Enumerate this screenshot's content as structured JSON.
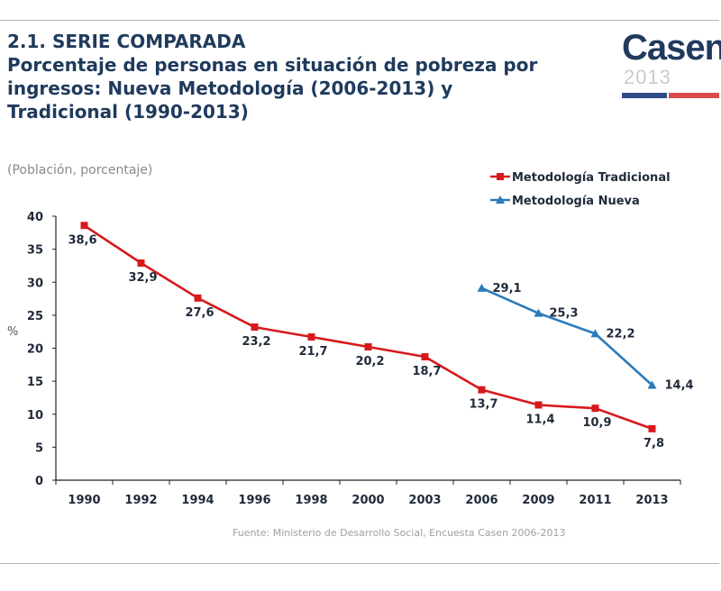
{
  "slide": {
    "title_line1": "2.1. SERIE COMPARADA",
    "title_line2": "Porcentaje de personas en situación de pobreza por\ningresos: Nueva Metodología (2006-2013) y\nTradicional (1990-2013)",
    "subtitle": "(Población, porcentaje)",
    "source": "Fuente: Ministerio de Desarrollo Social, Encuesta Casen 2006-2013",
    "logo_word": "Casen",
    "logo_year": "2013"
  },
  "colors": {
    "traditional": "#d7191c",
    "new": "#2b7bba",
    "title": "#1f3a5c"
  },
  "chart_data": {
    "type": "line",
    "categories": [
      "1990",
      "1992",
      "1994",
      "1996",
      "1998",
      "2000",
      "2003",
      "2006",
      "2009",
      "2011",
      "2013"
    ],
    "ylabel": "%",
    "ylim": [
      0,
      40
    ],
    "yticks": [
      0,
      5,
      10,
      15,
      20,
      25,
      30,
      35,
      40
    ],
    "grid": false,
    "legend_position": "top-right",
    "series": [
      {
        "name": "Metodología Tradicional",
        "marker": "square",
        "values": [
          38.6,
          32.9,
          27.6,
          23.2,
          21.7,
          20.2,
          18.7,
          13.7,
          11.4,
          10.9,
          7.8
        ],
        "labels": [
          "38,6",
          "32,9",
          "27,6",
          "23,2",
          "21,7",
          "20,2",
          "18,7",
          "13,7",
          "11,4",
          "10,9",
          "7,8"
        ]
      },
      {
        "name": "Metodología Nueva",
        "marker": "triangle",
        "values": [
          null,
          null,
          null,
          null,
          null,
          null,
          null,
          29.1,
          25.3,
          22.2,
          14.4
        ],
        "labels": [
          null,
          null,
          null,
          null,
          null,
          null,
          null,
          "29,1",
          "25,3",
          "22,2",
          "14,4"
        ]
      }
    ]
  }
}
